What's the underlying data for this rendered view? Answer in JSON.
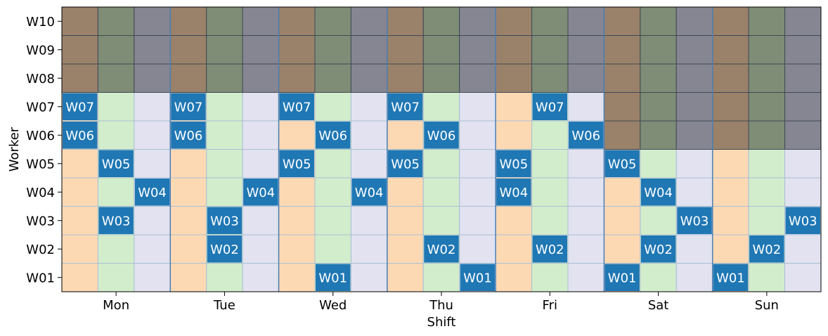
{
  "chart_data": {
    "type": "heatmap",
    "xlabel": "Shift",
    "ylabel": "Worker",
    "days": [
      "Mon",
      "Tue",
      "Wed",
      "Thu",
      "Fri",
      "Sat",
      "Sun"
    ],
    "shifts_per_day": 3,
    "workers": [
      "W01",
      "W02",
      "W03",
      "W04",
      "W05",
      "W06",
      "W07",
      "W08",
      "W09",
      "W10"
    ],
    "colors": {
      "shift_available": [
        "#fdd9b3",
        "#d2edcb",
        "#e2e2f0"
      ],
      "shift_unavailable": [
        "#9a8169",
        "#7f8c76",
        "#868692"
      ],
      "assigned": "#1f77b4",
      "day_separator": "#4a7fb5",
      "assigned_text": "#ffffff"
    },
    "unavailable": [
      {
        "worker": "W08",
        "day_from": 0,
        "day_to": 6
      },
      {
        "worker": "W09",
        "day_from": 0,
        "day_to": 6
      },
      {
        "worker": "W10",
        "day_from": 0,
        "day_to": 6
      },
      {
        "worker": "W06",
        "day_from": 5,
        "day_to": 6
      },
      {
        "worker": "W07",
        "day_from": 5,
        "day_to": 6
      }
    ],
    "assignments": [
      {
        "worker": "W07",
        "day": 0,
        "shift": 0
      },
      {
        "worker": "W06",
        "day": 0,
        "shift": 0
      },
      {
        "worker": "W05",
        "day": 0,
        "shift": 1
      },
      {
        "worker": "W03",
        "day": 0,
        "shift": 1
      },
      {
        "worker": "W04",
        "day": 0,
        "shift": 2
      },
      {
        "worker": "W07",
        "day": 1,
        "shift": 0
      },
      {
        "worker": "W06",
        "day": 1,
        "shift": 0
      },
      {
        "worker": "W03",
        "day": 1,
        "shift": 1
      },
      {
        "worker": "W02",
        "day": 1,
        "shift": 1
      },
      {
        "worker": "W04",
        "day": 1,
        "shift": 2
      },
      {
        "worker": "W07",
        "day": 2,
        "shift": 0
      },
      {
        "worker": "W05",
        "day": 2,
        "shift": 0
      },
      {
        "worker": "W06",
        "day": 2,
        "shift": 1
      },
      {
        "worker": "W01",
        "day": 2,
        "shift": 1
      },
      {
        "worker": "W04",
        "day": 2,
        "shift": 2
      },
      {
        "worker": "W07",
        "day": 3,
        "shift": 0
      },
      {
        "worker": "W05",
        "day": 3,
        "shift": 0
      },
      {
        "worker": "W06",
        "day": 3,
        "shift": 1
      },
      {
        "worker": "W02",
        "day": 3,
        "shift": 1
      },
      {
        "worker": "W01",
        "day": 3,
        "shift": 2
      },
      {
        "worker": "W05",
        "day": 4,
        "shift": 0
      },
      {
        "worker": "W04",
        "day": 4,
        "shift": 0
      },
      {
        "worker": "W07",
        "day": 4,
        "shift": 1
      },
      {
        "worker": "W02",
        "day": 4,
        "shift": 1
      },
      {
        "worker": "W06",
        "day": 4,
        "shift": 2
      },
      {
        "worker": "W05",
        "day": 5,
        "shift": 0
      },
      {
        "worker": "W01",
        "day": 5,
        "shift": 0
      },
      {
        "worker": "W04",
        "day": 5,
        "shift": 1
      },
      {
        "worker": "W02",
        "day": 5,
        "shift": 1
      },
      {
        "worker": "W03",
        "day": 5,
        "shift": 2
      },
      {
        "worker": "W01",
        "day": 6,
        "shift": 0
      },
      {
        "worker": "W02",
        "day": 6,
        "shift": 1
      },
      {
        "worker": "W03",
        "day": 6,
        "shift": 2
      }
    ]
  }
}
